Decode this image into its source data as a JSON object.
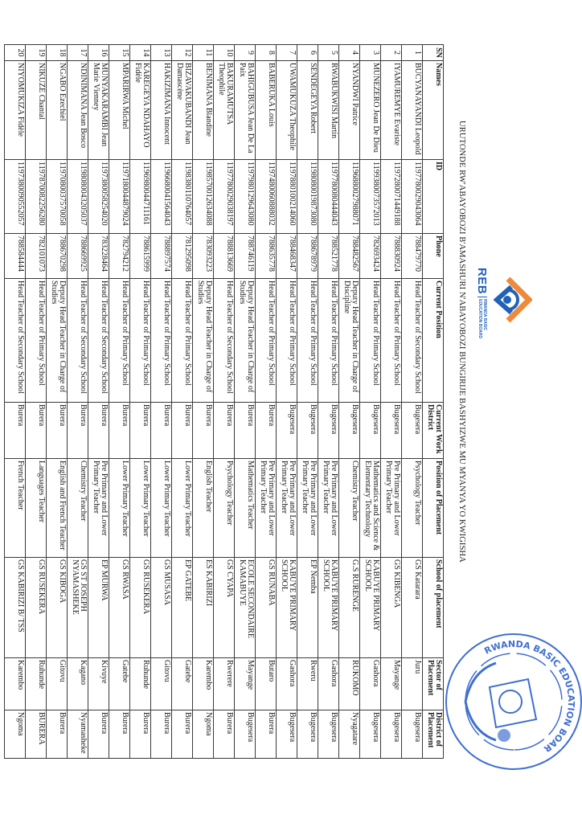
{
  "title": "URUTONDE RW'ABAYOBOZI B'AMASHURI N'ABAYOBOZI BUNGIRIJE BASHYIZWE MU MYANYA YO KWIGISHA",
  "logo": {
    "abbr": "REB",
    "line1": "RWANDA BASIC",
    "line2": "EDUCATION BOARD",
    "colors": {
      "blue": "#1f62b8",
      "orange": "#ef8a3c"
    }
  },
  "seal": {
    "text": "RWANDA BASIC EDUCATION BOARD (REB)",
    "color": "#3f6fd1"
  },
  "table": {
    "headers": [
      "SN",
      "Names",
      "ID",
      "Phone",
      "Current Position",
      "Current Work District",
      "Position of Placement",
      "School of placement",
      "Sector of Placement",
      "District of Placement"
    ],
    "rows": [
      [
        "1",
        "BUCYANAYANDI Leopold",
        "1197780029043064",
        "788479770",
        "Head Teacher of Secondary School",
        "Bugesera",
        "Psychology Teacher",
        "GS Katarara",
        "Juru",
        "Bugesera"
      ],
      [
        "2",
        "IYAMUREMYE Evariste",
        "1197280071449188",
        "788830924",
        "Head Teacher of Primary School",
        "Bugesera",
        "Pre Primary and Lower Primary Teacher",
        "GS KIBENGA",
        "Mayange",
        "Bugesera"
      ],
      [
        "3",
        "MUNEZERO Jean De Dieu",
        "1199380073572013",
        "782693424",
        "Head Teacher of Primary School",
        "Bugesera",
        "Mathematics and Science & Elementary Technology",
        "KABUYE PRIMARY SCHOOL",
        "Gashora",
        "Bugesera"
      ],
      [
        "4",
        "NYANDWI Patrice",
        "1196880027988071",
        "788482567",
        "Deputy Head Teacher in Charge of Discipline",
        "Bugesera",
        "Chemistry Teacher",
        "G.S RURENGE",
        "RUKOMO",
        "Nyagatare"
      ],
      [
        "5",
        "RWABUKWISI Martin",
        "1197780080444043",
        "788521778",
        "Head Teacher of Primary School",
        "Bugesera",
        "Pre Primary and Lower Primary Teacher",
        "KABUYE PRIMARY SCHOOL",
        "Gashora",
        "Bugesera"
      ],
      [
        "6",
        "SENDEGEYA Robert",
        "1198080019873080",
        "788678979",
        "Head Teacher of Primary School",
        "Bugesera",
        "Pre Primary and Lower Primary Teacher",
        "EP Nemba",
        "Rweru",
        "Bugesera"
      ],
      [
        "7",
        "UWAMUKUZA Theophile",
        "1197880100214060",
        "788468347",
        "Head Teacher of Primary School",
        "Bugesera",
        "Pre Primary and Lower Primary Teacher",
        "KABUYE PRIMARY SCHOOL",
        "Gashora",
        "Bugesera"
      ],
      [
        "8",
        "BABERUKA Louis",
        "1197480060888032",
        "788635778",
        "Head Teacher of Primary School",
        "Burera",
        "Pre Primary and Lower Primary Teacher",
        "GS RUNABA",
        "Butaro",
        "Burera"
      ],
      [
        "9",
        "BAHIGUBUSA Jean De La Paix",
        "1197980129643080",
        "788746119",
        "Deputy Head Teacher in Charge of Studies",
        "Burera",
        "Mathematics Teacher",
        "ECOLE SECONDAIRE KAMABUYE",
        "Mayange",
        "Bugesera"
      ],
      [
        "10",
        "BAKURAMUTSA Theophile",
        "1197780029038197",
        "788813669",
        "Head Teacher of Secondary School",
        "Burera",
        "Psychology Teacher",
        "GS CYAPA",
        "Rwerere",
        "Burera"
      ],
      [
        "11",
        "BENIMANA Blandine",
        "1198570012634088",
        "783093223",
        "Deputy Head Teacher in Charge of Studies",
        "Burera",
        "English Teacher",
        "ES KABIRIZI",
        "Karembo",
        "Ngoma"
      ],
      [
        "12",
        "BIZAVAKUBANDI Jean Damascène",
        "1198380110764057",
        "781295098",
        "Head Teacher of Primary School",
        "Burera",
        "Lower Primary Teacher",
        "EP GATEBE",
        "Gatebe",
        "Burera"
      ],
      [
        "13",
        "HAKIZIMANA Innocent",
        "1196680041564043",
        "788897574",
        "Head Teacher of Primary School",
        "Burera",
        "Lower Primary Teacher",
        "GS MUSASA",
        "Gitovu",
        "Burera"
      ],
      [
        "14",
        "KAREGEYA NDAHAYO Fidèle",
        "1196980044711161",
        "788615999",
        "Head Teacher of Primary School",
        "Burera",
        "Lower Primary Teacher",
        "GS RUSEKERA",
        "Ruhunde",
        "Burera"
      ],
      [
        "15",
        "MPARIRWA Michel",
        "1197180044879024",
        "782794212",
        "Head Teacher of Primary School",
        "Burera",
        "Lower Primary Teacher",
        "GS RWASA",
        "Gatebe",
        "Burera"
      ],
      [
        "16",
        "MUNYAKARAMBI Jean Marie Vienney",
        "1197380058254020",
        "783228464",
        "Head Teacher of Secondary School",
        "Burera",
        "Pre Primary and Lower Primary Teacher",
        "EP MURWA",
        "Kivuye",
        "Burera"
      ],
      [
        "17",
        "NDINIMANA Jean Bosco",
        "1198080043205037",
        "788669925",
        "Head Teacher of Secondary School",
        "Burera",
        "Chemistry Teacher",
        "GS ST JOSEPH NYAMASHEKE",
        "Kagano",
        "Nyamasheke"
      ],
      [
        "18",
        "NGABO Ezechiel",
        "1197080037570058",
        "788670298",
        "Deputy Head Teacher in Charge of Studies",
        "Burera",
        "English and French Teacher",
        "GS KIBOGA",
        "Gitovu",
        "Burera"
      ],
      [
        "19",
        "NIKUZE Chantal",
        "1197870082256280",
        "782101073",
        "Head Teacher of Primary School",
        "Burera",
        "Languages Teacher",
        "GS RUSEKERA",
        "Ruhunde",
        "BURERA"
      ],
      [
        "20",
        "NIYOMUKIZA Fidèle",
        "1197380090552057",
        "788584444",
        "Head Teacher of Secondary School",
        "Burera",
        "French Teacher",
        "GS KABIRIZI B/ TSS",
        "Karembo",
        "Ngoma"
      ]
    ]
  }
}
